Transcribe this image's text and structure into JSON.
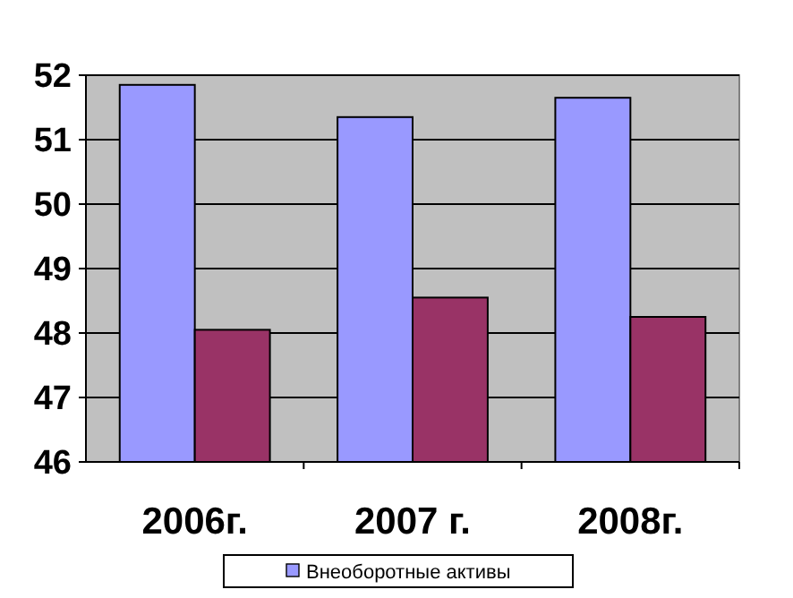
{
  "chart_data": {
    "type": "bar",
    "categories": [
      "2006г.",
      "2007 г.",
      "2008г."
    ],
    "series": [
      {
        "name": "Внеоборотные активы",
        "color": "#9999ff",
        "values": [
          51.85,
          51.35,
          51.65
        ]
      },
      {
        "color": "#993366",
        "values": [
          48.05,
          48.55,
          48.25
        ]
      }
    ],
    "ylim": [
      46,
      52
    ],
    "yticks": [
      46,
      47,
      48,
      49,
      50,
      51,
      52
    ],
    "grid": "y",
    "legend": "bottom"
  }
}
